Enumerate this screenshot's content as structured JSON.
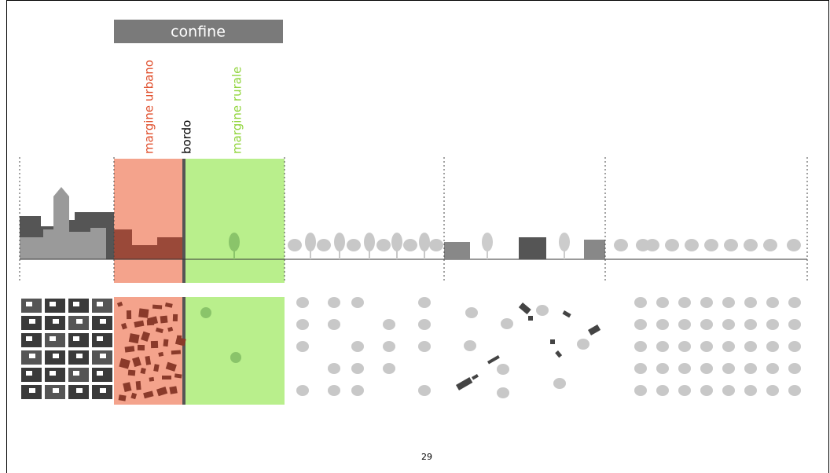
{
  "header": {
    "title": "confine"
  },
  "labels": {
    "urban": "margine urbano",
    "border": "bordo",
    "rural": "margine rurale"
  },
  "footer": {
    "page_number": "29"
  }
}
